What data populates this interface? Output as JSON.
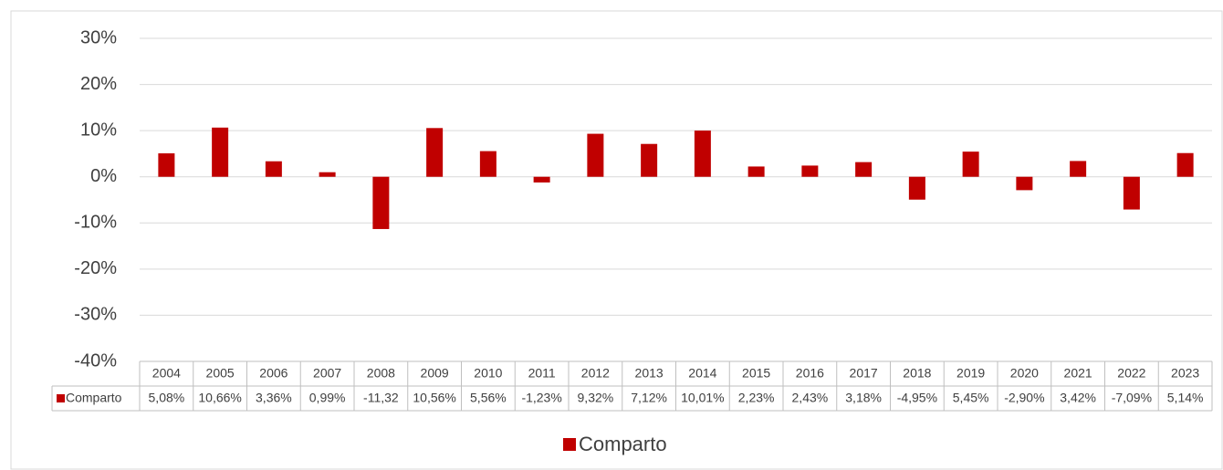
{
  "chart_data": {
    "type": "bar",
    "categories": [
      "2004",
      "2005",
      "2006",
      "2007",
      "2008",
      "2009",
      "2010",
      "2011",
      "2012",
      "2013",
      "2014",
      "2015",
      "2016",
      "2017",
      "2018",
      "2019",
      "2020",
      "2021",
      "2022",
      "2023"
    ],
    "series": [
      {
        "name": "Comparto",
        "color": "#c00000",
        "values": [
          5.08,
          10.66,
          3.36,
          0.99,
          -11.32,
          10.56,
          5.56,
          -1.23,
          9.32,
          7.12,
          10.01,
          2.23,
          2.43,
          3.18,
          -4.95,
          5.45,
          -2.9,
          3.42,
          -7.09,
          5.14
        ],
        "value_labels": [
          "5,08%",
          "10,66%",
          "3,36%",
          "0,99%",
          "-11,32",
          "10,56%",
          "5,56%",
          "-1,23%",
          "9,32%",
          "7,12%",
          "10,01%",
          "2,23%",
          "2,43%",
          "3,18%",
          "-4,95%",
          "5,45%",
          "-2,90%",
          "3,42%",
          "-7,09%",
          "5,14%"
        ]
      }
    ],
    "ylim": [
      -40,
      30
    ],
    "yticks": [
      {
        "value": -40,
        "label": "-40%"
      },
      {
        "value": -30,
        "label": "-30%"
      },
      {
        "value": -20,
        "label": "-20%"
      },
      {
        "value": -10,
        "label": "-10%"
      },
      {
        "value": 0,
        "label": "0%"
      },
      {
        "value": 10,
        "label": "10%"
      },
      {
        "value": 20,
        "label": "20%"
      },
      {
        "value": 30,
        "label": "30%"
      }
    ],
    "grid": true
  }
}
